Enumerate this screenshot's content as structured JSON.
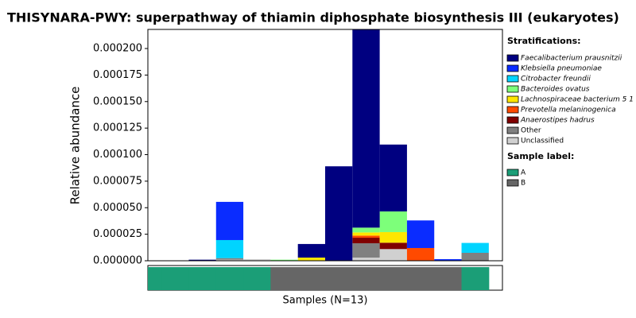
{
  "chart_data": {
    "type": "bar",
    "stacked": true,
    "title": "THISYNARA-PWY: superpathway of thiamin diphosphate biosynthesis III (eukaryotes)",
    "ylabel": "Relative abundance",
    "xlabel": "Samples (N=13)",
    "legend_title": "Stratifications:",
    "series": [
      {
        "name": "Faecalibacterium prausnitzii",
        "color": "#000080",
        "values": [
          0,
          0,
          1e-06,
          0,
          0,
          0,
          1.28e-05,
          8.9e-05,
          0.000195,
          6.3e-05,
          0,
          0,
          0
        ]
      },
      {
        "name": "Klebsiella pneumoniae",
        "color": "#0a2cff",
        "values": [
          0,
          0,
          0,
          3.6e-05,
          0,
          0,
          0,
          0,
          0,
          0,
          2.6e-05,
          1.5e-06,
          0
        ]
      },
      {
        "name": "Citrobacter freundii",
        "color": "#00d4ff",
        "values": [
          0,
          0,
          0,
          1.7e-05,
          0,
          0,
          0,
          0,
          0,
          0,
          0,
          0,
          9.3e-06
        ]
      },
      {
        "name": "Bacteroides ovatus",
        "color": "#7dff7a",
        "values": [
          0,
          0,
          0,
          0,
          0,
          1e-06,
          0,
          0,
          4.5e-06,
          1.95e-05,
          0,
          0,
          0
        ]
      },
      {
        "name": "Lachnospiraceae bacterium 5 1 6",
        "color": "#ffe600",
        "values": [
          0,
          0,
          0,
          0,
          0,
          0,
          3e-06,
          0,
          3e-06,
          1e-05,
          0,
          0,
          0
        ]
      },
      {
        "name": "Prevotella melaninogenica",
        "color": "#ff4a00",
        "values": [
          0,
          0,
          0,
          0,
          0,
          0,
          0,
          0,
          2e-06,
          0,
          1.2e-05,
          0,
          0
        ]
      },
      {
        "name": "Anaerostipes hadrus",
        "color": "#800000",
        "values": [
          0,
          0,
          0,
          0,
          0,
          0,
          0,
          0,
          5.2e-06,
          6e-06,
          0,
          0,
          0
        ]
      },
      {
        "name": "Other",
        "color": "#808080",
        "values": [
          0,
          0,
          0,
          1.5e-06,
          0,
          0,
          0,
          0,
          1.35e-05,
          0,
          0,
          0,
          7.5e-06
        ]
      },
      {
        "name": "Unclassified",
        "color": "#d0d0d0",
        "values": [
          0,
          0,
          0,
          1e-06,
          1.5e-06,
          0,
          0,
          0,
          3e-06,
          1.1e-05,
          0,
          0,
          0
        ]
      }
    ],
    "ylim": [
      0,
      0.000218
    ],
    "yticks": [
      {
        "value": 0,
        "label": "0.000000"
      },
      {
        "value": 2.5e-05,
        "label": "0.000025"
      },
      {
        "value": 5e-05,
        "label": "0.000050"
      },
      {
        "value": 7.5e-05,
        "label": "0.000075"
      },
      {
        "value": 0.0001,
        "label": "0.000100"
      },
      {
        "value": 0.000125,
        "label": "0.000125"
      },
      {
        "value": 0.00015,
        "label": "0.000150"
      },
      {
        "value": 0.000175,
        "label": "0.000175"
      },
      {
        "value": 0.0002,
        "label": "0.000200"
      }
    ],
    "sample_label_title": "Sample label:",
    "sample_label_groups": [
      {
        "name": "A",
        "color": "#1b9e77"
      },
      {
        "name": "B",
        "color": "#666666"
      }
    ],
    "sample_labels": [
      "A",
      "A",
      "A",
      "A",
      "A",
      "B",
      "B",
      "B",
      "B",
      "B",
      "B",
      "B",
      "A"
    ]
  }
}
